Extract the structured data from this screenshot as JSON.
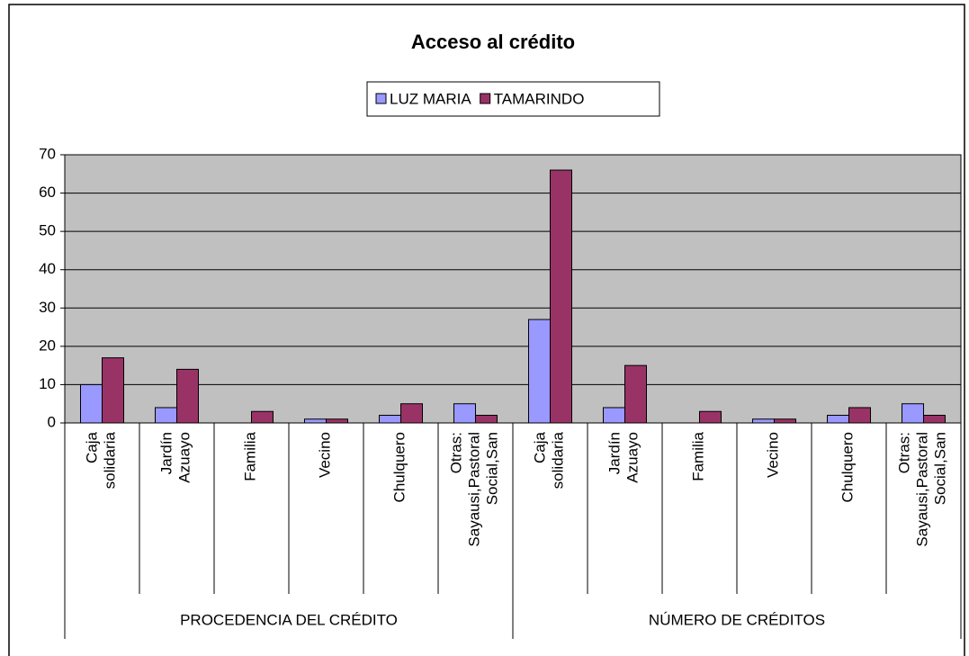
{
  "chart_data": {
    "type": "bar",
    "title": "Acceso al crédito",
    "groups": [
      {
        "name": "PROCEDENCIA DEL CRÉDITO",
        "categories": [
          "Caja solidaria",
          "Jardín Azuayo",
          "Familia",
          "Vecino",
          "Chulquero",
          "Otras: Sayausi,Pastoral Social,San"
        ]
      },
      {
        "name": "NÚMERO DE CRÉDITOS",
        "categories": [
          "Caja solidaria",
          "Jardín Azuayo",
          "Familia",
          "Vecino",
          "Chulquero",
          "Otras: Sayausi,Pastoral Social,San"
        ]
      }
    ],
    "series": [
      {
        "name": "LUZ MARIA",
        "color": "#9999ff",
        "values": [
          10,
          4,
          0,
          1,
          2,
          5,
          27,
          4,
          0,
          1,
          2,
          5
        ]
      },
      {
        "name": "TAMARINDO",
        "color": "#993366",
        "values": [
          17,
          14,
          3,
          1,
          5,
          2,
          66,
          15,
          3,
          1,
          4,
          2
        ]
      }
    ],
    "ylim": [
      0,
      70
    ],
    "yticks": [
      0,
      10,
      20,
      30,
      40,
      50,
      60,
      70
    ],
    "grid": true,
    "legend": "top"
  }
}
